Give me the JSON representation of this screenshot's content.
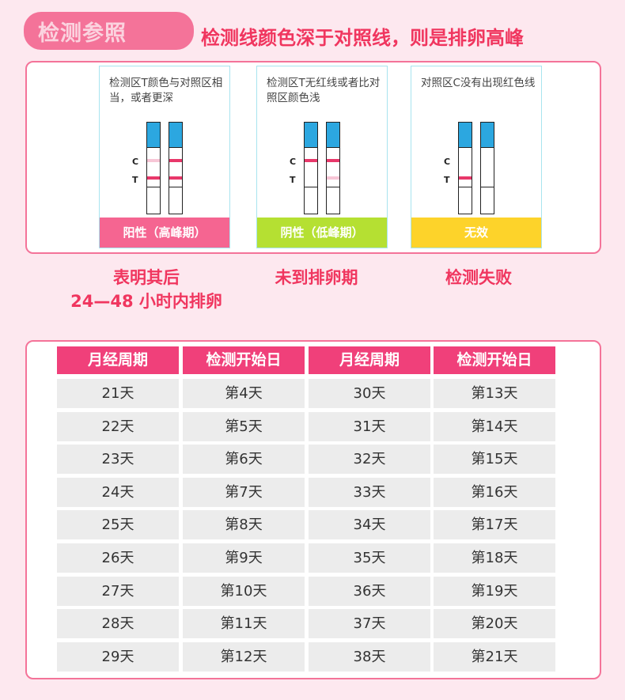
{
  "header": {
    "badge": "检测参照",
    "headline": "检测线颜色深于对照线，则是排卵高峰"
  },
  "colors": {
    "accent": "#f0365f",
    "pill": "#f47399",
    "positive": "#f56591",
    "negative": "#b5e032",
    "invalid": "#fdd32a",
    "strip_blue": "#2ca7e0",
    "line_strong": "#e8386a",
    "line_faint": "#f7c6d6"
  },
  "cards": [
    {
      "desc": "检测区T颜色与对照区相当，或者更深",
      "label": "阳性（高峰期）",
      "strips": [
        {
          "c": "faint",
          "t": "strong"
        },
        {
          "c": "strong",
          "t": "strong"
        }
      ],
      "caption": [
        "表明其后",
        "24—48 小时内排卵"
      ]
    },
    {
      "desc": "检测区T无红线或者比对照区颜色浅",
      "label": "阴性（低峰期）",
      "strips": [
        {
          "c": "strong",
          "t": "none"
        },
        {
          "c": "strong",
          "t": "faint"
        }
      ],
      "caption": [
        "未到排卵期"
      ]
    },
    {
      "desc": "对照区C没有出现红色线",
      "label": "无效",
      "strips": [
        {
          "c": "none",
          "t": "strong"
        },
        {
          "c": "none",
          "t": "none"
        }
      ],
      "caption": [
        "检测失败"
      ]
    }
  ],
  "strip_letters": {
    "c": "C",
    "t": "T"
  },
  "table": {
    "headers": [
      "月经周期",
      "检测开始日",
      "月经周期",
      "检测开始日"
    ],
    "rows": [
      [
        "21天",
        "第4天",
        "30天",
        "第13天"
      ],
      [
        "22天",
        "第5天",
        "31天",
        "第14天"
      ],
      [
        "23天",
        "第6天",
        "32天",
        "第15天"
      ],
      [
        "24天",
        "第7天",
        "33天",
        "第16天"
      ],
      [
        "25天",
        "第8天",
        "34天",
        "第17天"
      ],
      [
        "26天",
        "第9天",
        "35天",
        "第18天"
      ],
      [
        "27天",
        "第10天",
        "36天",
        "第19天"
      ],
      [
        "28天",
        "第11天",
        "37天",
        "第20天"
      ],
      [
        "29天",
        "第12天",
        "38天",
        "第21天"
      ]
    ]
  }
}
